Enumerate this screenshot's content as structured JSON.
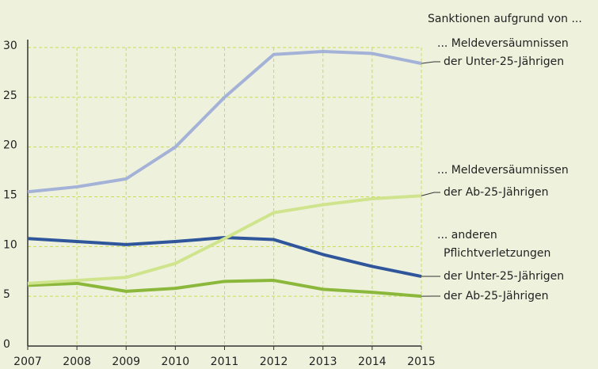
{
  "chart_data": {
    "type": "line",
    "subtitle": "Sanktionen aufgrund von ...",
    "x": [
      2007,
      2008,
      2009,
      2010,
      2011,
      2012,
      2013,
      2014,
      2015
    ],
    "xlim": [
      2007,
      2015
    ],
    "xticks": [
      2007,
      2008,
      2009,
      2010,
      2011,
      2012,
      2013,
      2014,
      2015
    ],
    "ylim": [
      0,
      30
    ],
    "yticks": [
      0,
      5,
      10,
      15,
      20,
      25,
      30
    ],
    "grid": true,
    "series": [
      {
        "heading": [
          "... Meldeversäumnissen"
        ],
        "name": "der Unter-25-Jährigen",
        "color": "#a4b2d8",
        "values": [
          15.5,
          16.0,
          16.8,
          20.0,
          25.0,
          29.3,
          29.6,
          29.4,
          28.4
        ]
      },
      {
        "heading": [
          "... Meldeversäumnissen"
        ],
        "name": "der Ab-25-Jährigen",
        "color": "#cfe48c",
        "values": [
          6.3,
          6.6,
          6.9,
          8.3,
          10.8,
          13.4,
          14.2,
          14.8,
          15.1
        ]
      },
      {
        "heading": [
          "... anderen",
          "Pflichtverletzungen"
        ],
        "name": "der Unter-25-Jährigen",
        "color": "#2f569b",
        "values": [
          10.8,
          10.5,
          10.2,
          10.5,
          10.9,
          10.7,
          9.2,
          8.0,
          7.0
        ]
      },
      {
        "name": "der Ab-25-Jährigen",
        "color": "#8bb83b",
        "values": [
          6.1,
          6.3,
          5.5,
          5.8,
          6.5,
          6.6,
          5.7,
          5.4,
          5.0
        ]
      }
    ]
  }
}
